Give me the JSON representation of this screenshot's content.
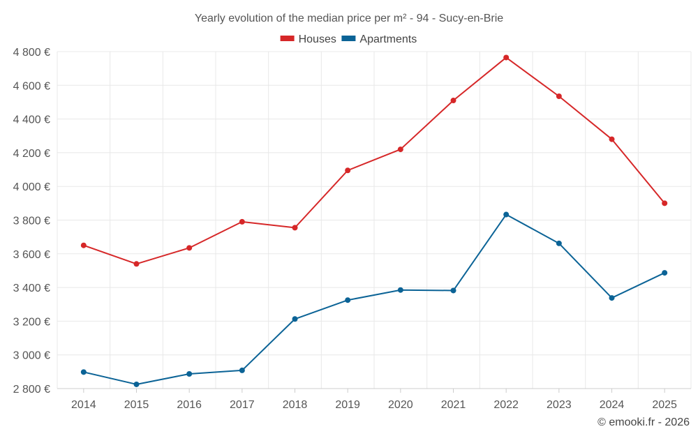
{
  "chart_data": {
    "type": "line",
    "title": "Yearly evolution of the median price per m² - 94 - Sucy-en-Brie",
    "categories": [
      "2014",
      "2015",
      "2016",
      "2017",
      "2018",
      "2019",
      "2020",
      "2021",
      "2022",
      "2023",
      "2024",
      "2025"
    ],
    "series": [
      {
        "name": "Houses",
        "color": "#d62728",
        "values": [
          3650,
          3540,
          3635,
          3790,
          3755,
          4095,
          4220,
          4510,
          4765,
          4535,
          4280,
          3900
        ]
      },
      {
        "name": "Apartments",
        "color": "#0b6396",
        "values": [
          2898,
          2825,
          2887,
          2908,
          3213,
          3325,
          3385,
          3382,
          3833,
          3662,
          3338,
          3487
        ]
      }
    ],
    "ylim": [
      2800,
      4800
    ],
    "yticks": [
      2800,
      3000,
      3200,
      3400,
      3600,
      3800,
      4000,
      4200,
      4400,
      4600,
      4800
    ],
    "ytick_labels": [
      "2 800 €",
      "3 000 €",
      "3 200 €",
      "3 400 €",
      "3 600 €",
      "3 800 €",
      "4 000 €",
      "4 200 €",
      "4 400 €",
      "4 600 €",
      "4 800 €"
    ],
    "legend": "top-center",
    "grid": true
  },
  "credit": "© emooki.fr - 2026"
}
